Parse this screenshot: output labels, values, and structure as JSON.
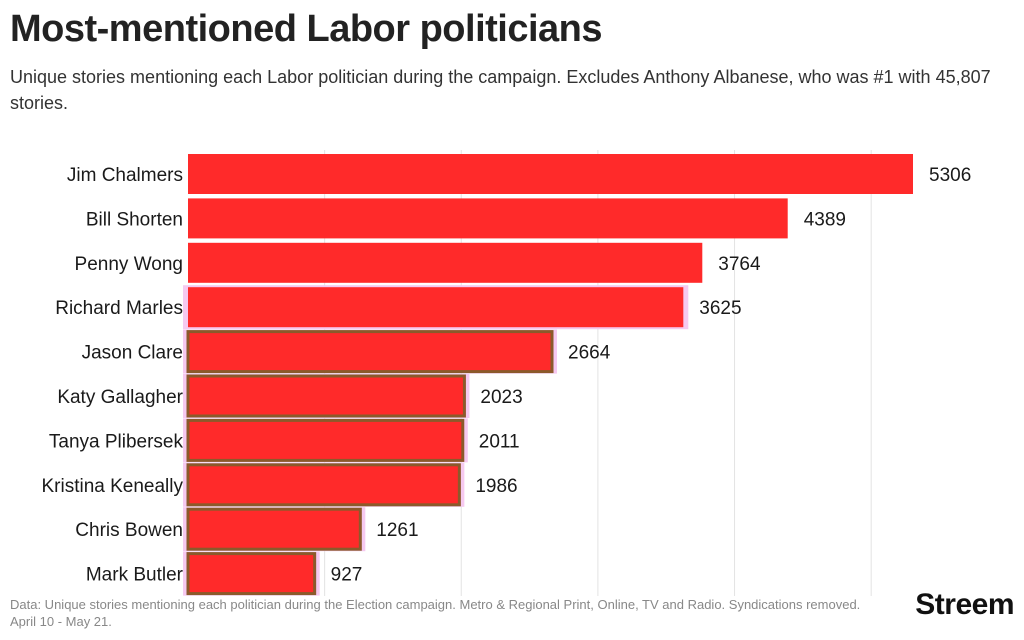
{
  "header": {
    "title": "Most-mentioned Labor politicians",
    "subtitle": "Unique stories mentioning each Labor politician during the campaign. Excludes Anthony Albanese, who was #1 with 45,807 stories."
  },
  "footer": {
    "source": "Data: Unique stories mentioning each politician during the Election campaign. Metro & Regional Print, Online, TV and Radio. Syndications removed. April 10 - May 21.",
    "brand": "Streem"
  },
  "colors": {
    "bar": "#ff2a2a",
    "bar_edge": "#8b5a2b",
    "highlight": "#f6c9f0",
    "grid": "#e3e3e3"
  },
  "chart_data": {
    "type": "bar",
    "orientation": "horizontal",
    "categories": [
      "Jim Chalmers",
      "Bill Shorten",
      "Penny Wong",
      "Richard Marles",
      "Jason Clare",
      "Katy Gallagher",
      "Tanya Plibersek",
      "Kristina Keneally",
      "Chris Bowen",
      "Mark Butler"
    ],
    "values": [
      5306,
      4389,
      3764,
      3625,
      2664,
      2023,
      2011,
      1986,
      1261,
      927
    ],
    "xlim": [
      0,
      5306
    ],
    "grid": true,
    "grid_step": 1000,
    "data_labels": true
  }
}
